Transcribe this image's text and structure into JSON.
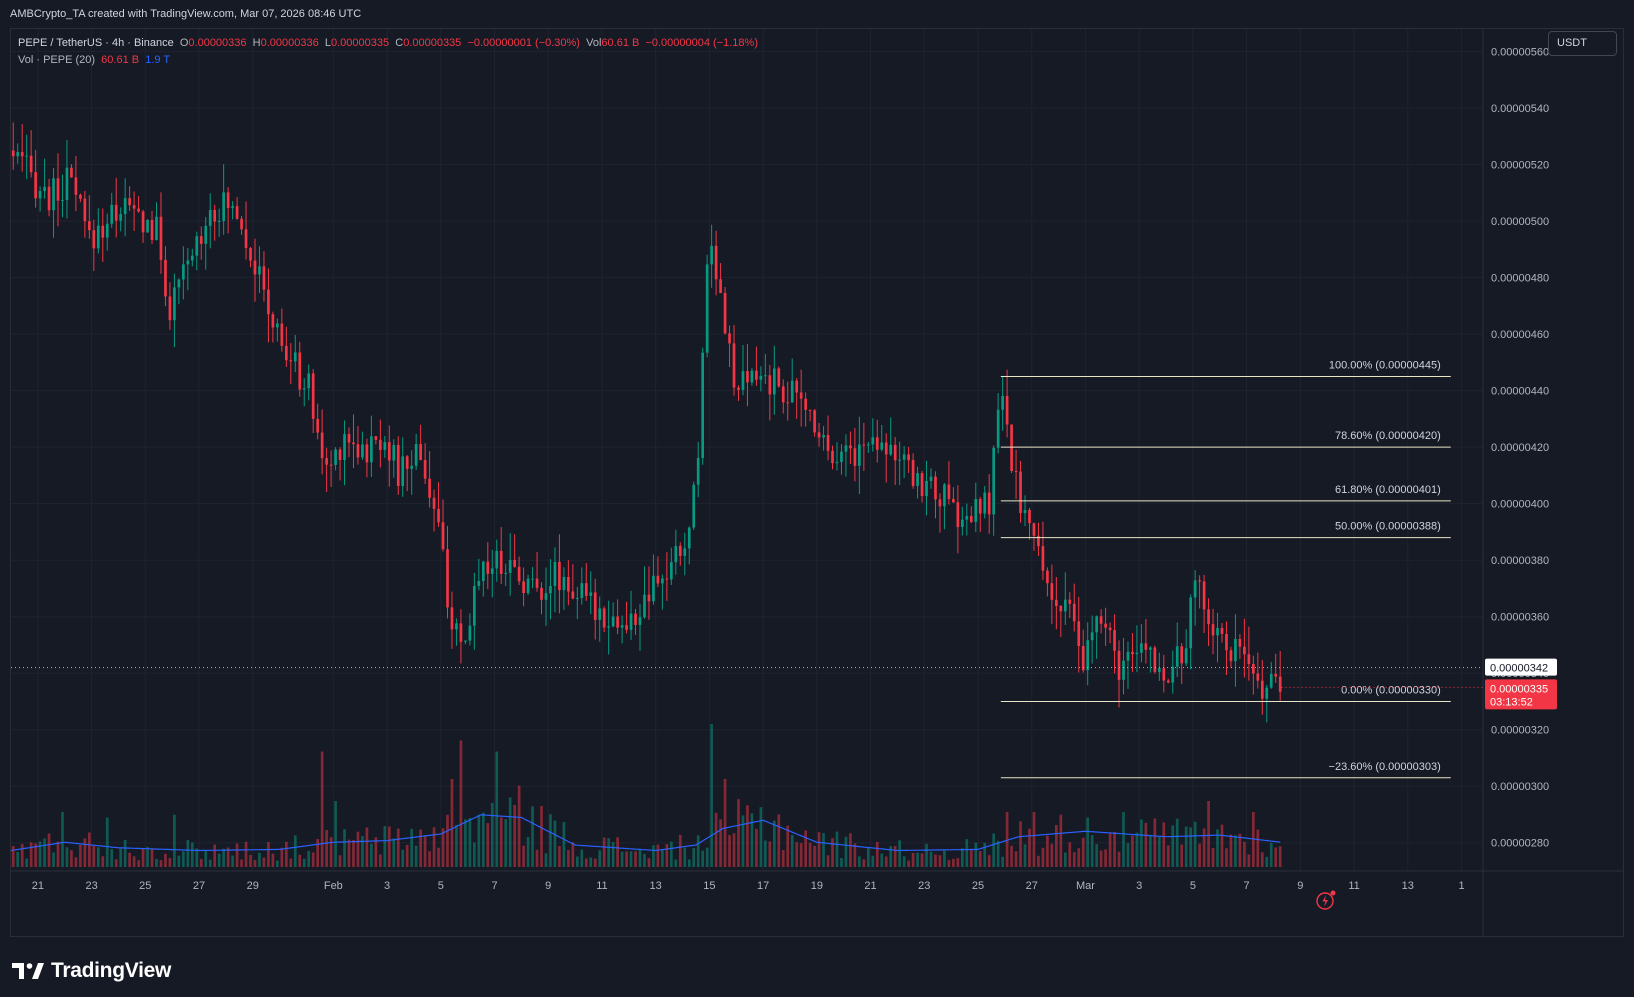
{
  "header": {
    "title": "AMBCrypto_TA created with TradingView.com, Mar 07, 2026 08:46 UTC"
  },
  "legend": {
    "symbol": "PEPE / TetherUS · 4h · Binance",
    "o_label": "O",
    "o_value": "0.00000336",
    "h_label": "H",
    "h_value": "0.00000336",
    "l_label": "L",
    "l_value": "0.00000335",
    "c_label": "C",
    "c_value": "0.00000335",
    "change": "−0.00000001 (−0.30%)",
    "vol_label": "Vol",
    "vol_value": "60.61 B",
    "vol_change": "−0.00000004 (−1.18%)",
    "vol_indicator": "Vol · PEPE (20)",
    "vol_val1": "60.61 B",
    "vol_val2": "1.9 T"
  },
  "currency_button": "USDT",
  "brand": "TradingView",
  "colors": {
    "up": "#089981",
    "down": "#f23645",
    "vol_ma": "#2962ff",
    "fib": "#e8e5c5",
    "background": "#161a25",
    "grid": "#1f2330"
  },
  "price_tags": {
    "prev_close": "0.00000342",
    "last_price": "0.00000335",
    "countdown": "03:13:52"
  },
  "chart_data": {
    "type": "candlestick",
    "title": "",
    "y_ticks": [
      2.8e-06,
      3e-06,
      3.2e-06,
      3.4e-06,
      3.6e-06,
      3.8e-06,
      4e-06,
      4.2e-06,
      4.4e-06,
      4.6e-06,
      4.8e-06,
      5e-06,
      5.2e-06,
      5.4e-06,
      5.6e-06
    ],
    "y_tick_labels": [
      "0.00000280",
      "0.00000300",
      "0.00000320",
      "0.00000340",
      "0.00000360",
      "0.00000380",
      "0.00000400",
      "0.00000420",
      "0.00000440",
      "0.00000460",
      "0.00000480",
      "0.00000500",
      "0.00000520",
      "0.00000540",
      "0.00000560"
    ],
    "ylim": [
      2.7e-06,
      5.68e-06
    ],
    "x_ticks": [
      "21",
      "23",
      "25",
      "27",
      "29",
      "Feb",
      "3",
      "5",
      "7",
      "9",
      "11",
      "13",
      "15",
      "17",
      "19",
      "21",
      "23",
      "25",
      "27",
      "Mar",
      "3",
      "5",
      "7",
      "9",
      "11",
      "13",
      "1"
    ],
    "x_tick_days": [
      0,
      2,
      4,
      6,
      8,
      11,
      13,
      15,
      17,
      19,
      21,
      23,
      25,
      27,
      29,
      31,
      33,
      35,
      37,
      39,
      41,
      43,
      45,
      47,
      49,
      51,
      53
    ],
    "x_range_days": [
      -1.0,
      53.8
    ],
    "key_prices": [
      {
        "day": -1.0,
        "price": 5.25e-06
      },
      {
        "day": 0.5,
        "price": 5.08e-06
      },
      {
        "day": 1.3,
        "price": 5.14e-06
      },
      {
        "day": 2.0,
        "price": 4.93e-06
      },
      {
        "day": 3.2,
        "price": 5.06e-06
      },
      {
        "day": 4.5,
        "price": 4.96e-06
      },
      {
        "day": 5.0,
        "price": 4.68e-06
      },
      {
        "day": 5.5,
        "price": 4.8e-06
      },
      {
        "day": 6.5,
        "price": 5.05e-06
      },
      {
        "day": 7.5,
        "price": 5.05e-06
      },
      {
        "day": 8.0,
        "price": 4.9e-06
      },
      {
        "day": 8.6,
        "price": 4.7e-06
      },
      {
        "day": 9.2,
        "price": 4.55e-06
      },
      {
        "day": 10.2,
        "price": 4.4e-06
      },
      {
        "day": 10.8,
        "price": 4.1e-06
      },
      {
        "day": 11.5,
        "price": 4.25e-06
      },
      {
        "day": 12.3,
        "price": 4.18e-06
      },
      {
        "day": 13.0,
        "price": 4.25e-06
      },
      {
        "day": 13.5,
        "price": 4.1e-06
      },
      {
        "day": 14.3,
        "price": 4.2e-06
      },
      {
        "day": 15.0,
        "price": 3.9e-06
      },
      {
        "day": 15.5,
        "price": 3.58e-06
      },
      {
        "day": 15.9,
        "price": 3.43e-06
      },
      {
        "day": 16.5,
        "price": 3.78e-06
      },
      {
        "day": 17.5,
        "price": 3.8e-06
      },
      {
        "day": 18.5,
        "price": 3.7e-06
      },
      {
        "day": 19.5,
        "price": 3.75e-06
      },
      {
        "day": 20.5,
        "price": 3.65e-06
      },
      {
        "day": 21.5,
        "price": 3.6e-06
      },
      {
        "day": 22.0,
        "price": 3.55e-06
      },
      {
        "day": 22.5,
        "price": 3.62e-06
      },
      {
        "day": 23.5,
        "price": 3.75e-06
      },
      {
        "day": 24.3,
        "price": 3.88e-06
      },
      {
        "day": 24.7,
        "price": 4.2e-06
      },
      {
        "day": 24.9,
        "price": 4.78e-06
      },
      {
        "day": 25.2,
        "price": 4.93e-06
      },
      {
        "day": 25.6,
        "price": 4.7e-06
      },
      {
        "day": 26.0,
        "price": 4.4e-06
      },
      {
        "day": 27.0,
        "price": 4.45e-06
      },
      {
        "day": 28.0,
        "price": 4.4e-06
      },
      {
        "day": 29.0,
        "price": 4.3e-06
      },
      {
        "day": 29.5,
        "price": 4.2e-06
      },
      {
        "day": 30.5,
        "price": 4.18e-06
      },
      {
        "day": 31.5,
        "price": 4.25e-06
      },
      {
        "day": 32.5,
        "price": 4.1e-06
      },
      {
        "day": 33.5,
        "price": 4.05e-06
      },
      {
        "day": 34.5,
        "price": 3.93e-06
      },
      {
        "day": 35.5,
        "price": 4e-06
      },
      {
        "day": 35.9,
        "price": 4.4e-06
      },
      {
        "day": 36.4,
        "price": 4.1e-06
      },
      {
        "day": 37.2,
        "price": 3.85e-06
      },
      {
        "day": 38.0,
        "price": 3.65e-06
      },
      {
        "day": 38.5,
        "price": 3.6e-06
      },
      {
        "day": 39.0,
        "price": 3.42e-06
      },
      {
        "day": 39.5,
        "price": 3.6e-06
      },
      {
        "day": 40.5,
        "price": 3.4e-06
      },
      {
        "day": 41.3,
        "price": 3.5e-06
      },
      {
        "day": 42.0,
        "price": 3.4e-06
      },
      {
        "day": 42.7,
        "price": 3.45e-06
      },
      {
        "day": 43.2,
        "price": 3.73e-06
      },
      {
        "day": 43.7,
        "price": 3.6e-06
      },
      {
        "day": 44.3,
        "price": 3.5e-06
      },
      {
        "day": 45.0,
        "price": 3.45e-06
      },
      {
        "day": 45.3,
        "price": 3.35e-06
      },
      {
        "day": 45.7,
        "price": 3.37e-06
      },
      {
        "day": 46.0,
        "price": 3.35e-06
      }
    ],
    "volume_ma_points": [
      {
        "day": -1.0,
        "v": 0.3
      },
      {
        "day": 1.0,
        "v": 0.45
      },
      {
        "day": 3.0,
        "v": 0.35
      },
      {
        "day": 6.0,
        "v": 0.3
      },
      {
        "day": 9.0,
        "v": 0.32
      },
      {
        "day": 11.0,
        "v": 0.45
      },
      {
        "day": 13.0,
        "v": 0.48
      },
      {
        "day": 15.0,
        "v": 0.6
      },
      {
        "day": 16.5,
        "v": 0.95
      },
      {
        "day": 18.0,
        "v": 0.9
      },
      {
        "day": 20.0,
        "v": 0.4
      },
      {
        "day": 23.0,
        "v": 0.3
      },
      {
        "day": 24.5,
        "v": 0.4
      },
      {
        "day": 25.5,
        "v": 0.7
      },
      {
        "day": 27.0,
        "v": 0.85
      },
      {
        "day": 29.0,
        "v": 0.45
      },
      {
        "day": 32.0,
        "v": 0.3
      },
      {
        "day": 35.0,
        "v": 0.32
      },
      {
        "day": 36.5,
        "v": 0.55
      },
      {
        "day": 39.0,
        "v": 0.65
      },
      {
        "day": 42.0,
        "v": 0.55
      },
      {
        "day": 44.0,
        "v": 0.58
      },
      {
        "day": 46.3,
        "v": 0.45
      }
    ],
    "volume_spikes": [
      {
        "day": 0.8,
        "v": 1.0
      },
      {
        "day": 2.5,
        "v": 0.9
      },
      {
        "day": 5.0,
        "v": 0.95
      },
      {
        "day": 10.5,
        "v": 2.1
      },
      {
        "day": 11.0,
        "v": 1.2
      },
      {
        "day": 15.3,
        "v": 1.6
      },
      {
        "day": 15.6,
        "v": 2.3
      },
      {
        "day": 17.0,
        "v": 2.1
      },
      {
        "day": 25.0,
        "v": 2.6
      },
      {
        "day": 25.5,
        "v": 1.6
      },
      {
        "day": 36.0,
        "v": 1.0
      },
      {
        "day": 37.0,
        "v": 1.0
      },
      {
        "day": 39.0,
        "v": 0.9
      },
      {
        "day": 43.5,
        "v": 1.2
      },
      {
        "day": 45.2,
        "v": 1.0
      }
    ],
    "fibonacci": {
      "start_day": 35.85,
      "end_day": 52.6,
      "levels": [
        {
          "label": "100.00% (0.00000445)",
          "price": 4.45e-06
        },
        {
          "label": "78.60% (0.00000420)",
          "price": 4.2e-06
        },
        {
          "label": "61.80% (0.00000401)",
          "price": 4.01e-06
        },
        {
          "label": "50.00% (0.00000388)",
          "price": 3.88e-06
        },
        {
          "label": "0.00% (0.00000330)",
          "price": 3.3e-06
        },
        {
          "label": "−23.60% (0.00000303)",
          "price": 3.03e-06
        }
      ]
    },
    "prev_close_price": 3.42e-06,
    "last_price": 3.35e-06,
    "last_day": 46.3,
    "grid": true
  }
}
